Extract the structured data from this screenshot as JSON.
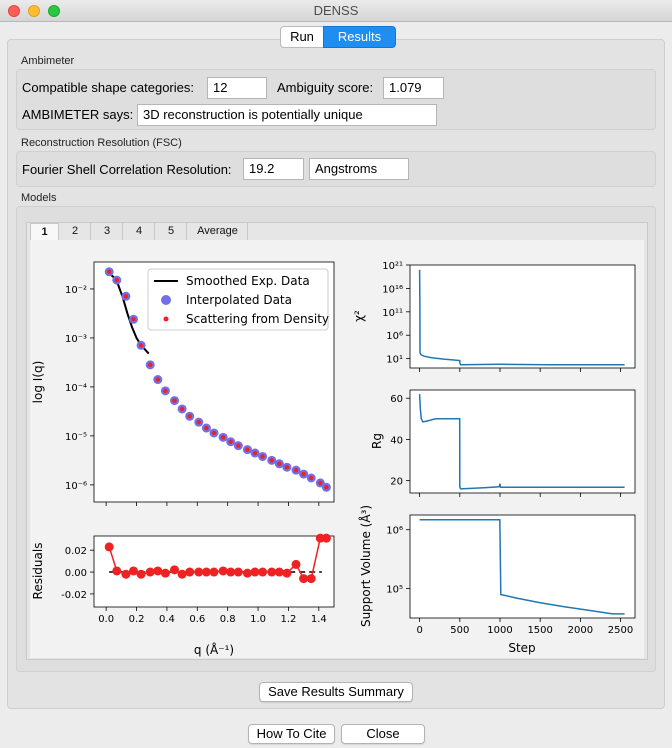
{
  "window": {
    "title": "DENSS"
  },
  "segmented": {
    "run": "Run",
    "results": "Results"
  },
  "ambimeter": {
    "section_label": "Ambimeter",
    "categories_label": "Compatible shape categories:",
    "categories_value": "12",
    "ambiguity_label": "Ambiguity score:",
    "ambiguity_value": "1.079",
    "says_label": "AMBIMETER says:",
    "says_value": "3D reconstruction is potentially unique"
  },
  "fsc": {
    "section_label": "Reconstruction Resolution (FSC)",
    "label": "Fourier Shell Correlation Resolution:",
    "value": "19.2",
    "unit": "Angstroms"
  },
  "models": {
    "section_label": "Models",
    "tabs": [
      "1",
      "2",
      "3",
      "4",
      "5",
      "Average"
    ],
    "selected_tab": "1"
  },
  "buttons": {
    "save": "Save Results Summary",
    "cite": "How To Cite",
    "close": "Close"
  },
  "colors": {
    "accent": "#1f8ef1",
    "line": "#1f77b4",
    "residual": "#ee2222",
    "interp": "#7070e8",
    "density": "#ee2222"
  },
  "chart_data": [
    {
      "type": "scatter",
      "ylabel": "log I(q)",
      "yscale": "log",
      "xlim": [
        -0.08,
        1.5
      ],
      "ylim_exp": [
        -6.35,
        -1.45
      ],
      "ytick_exponents": [
        -6,
        -5,
        -4,
        -3,
        -2
      ],
      "legend": [
        "Smoothed Exp. Data",
        "Interpolated Data",
        "Scattering from Density"
      ],
      "legend_placement": "top-right",
      "smoothed": {
        "x": [
          0.02,
          0.05,
          0.08,
          0.11,
          0.14,
          0.17,
          0.2,
          0.23,
          0.26,
          0.28
        ],
        "logy": [
          -1.68,
          -1.76,
          -1.92,
          -2.18,
          -2.5,
          -2.78,
          -3.0,
          -3.15,
          -3.25,
          -3.32
        ]
      },
      "points": {
        "x": [
          0.02,
          0.07,
          0.13,
          0.18,
          0.23,
          0.29,
          0.34,
          0.39,
          0.45,
          0.5,
          0.55,
          0.61,
          0.66,
          0.71,
          0.77,
          0.82,
          0.87,
          0.93,
          0.98,
          1.03,
          1.09,
          1.14,
          1.19,
          1.25,
          1.3,
          1.35,
          1.41,
          1.45
        ],
        "logy": [
          -1.65,
          -1.82,
          -2.15,
          -2.62,
          -3.15,
          -3.55,
          -3.85,
          -4.08,
          -4.28,
          -4.45,
          -4.6,
          -4.72,
          -4.84,
          -4.94,
          -5.03,
          -5.12,
          -5.2,
          -5.28,
          -5.35,
          -5.42,
          -5.5,
          -5.57,
          -5.64,
          -5.7,
          -5.78,
          -5.86,
          -5.96,
          -6.05
        ]
      }
    },
    {
      "type": "line",
      "xlabel": "q (Å⁻¹)",
      "ylabel": "Residuals",
      "xlim": [
        -0.08,
        1.5
      ],
      "ylim": [
        -0.032,
        0.033
      ],
      "xticks": [
        0.0,
        0.2,
        0.4,
        0.6,
        0.8,
        1.0,
        1.2,
        1.4
      ],
      "yticks": [
        -0.02,
        0.0,
        0.02
      ],
      "x": [
        0.02,
        0.07,
        0.13,
        0.18,
        0.23,
        0.29,
        0.34,
        0.39,
        0.45,
        0.5,
        0.55,
        0.61,
        0.66,
        0.71,
        0.77,
        0.82,
        0.87,
        0.93,
        0.98,
        1.03,
        1.09,
        1.14,
        1.19,
        1.25,
        1.3,
        1.35,
        1.41,
        1.45
      ],
      "y": [
        0.023,
        0.001,
        -0.002,
        0.001,
        -0.002,
        0.0,
        0.001,
        -0.001,
        0.002,
        -0.002,
        0.0,
        0.0,
        0.0,
        0.0,
        0.001,
        0.0,
        0.0,
        -0.001,
        0.0,
        0.0,
        0.0,
        0.0,
        -0.001,
        0.007,
        -0.006,
        -0.006,
        0.031,
        0.031
      ]
    },
    {
      "type": "line",
      "ylabel": "χ²",
      "yscale": "log",
      "xlim": [
        -120,
        2680
      ],
      "ylim_exp": [
        -1,
        21
      ],
      "ytick_exponents": [
        1,
        6,
        11,
        16,
        21
      ],
      "step": [
        0,
        3,
        5,
        20,
        60,
        150,
        300,
        500,
        500,
        510,
        1000,
        1600,
        2200,
        2550
      ],
      "log_chi2": [
        20,
        12,
        2.2,
        1.8,
        1.5,
        1.2,
        0.9,
        0.6,
        0.1,
        -0.3,
        -0.2,
        -0.3,
        -0.3,
        -0.3
      ]
    },
    {
      "type": "line",
      "ylabel": "Rg",
      "xlim": [
        -120,
        2680
      ],
      "ylim": [
        14,
        64
      ],
      "yticks": [
        20,
        40,
        60
      ],
      "step": [
        0,
        8,
        20,
        40,
        100,
        200,
        300,
        440,
        498,
        500,
        510,
        800,
        990,
        1000,
        1005,
        1010,
        1500,
        2000,
        2550
      ],
      "rg": [
        62,
        55,
        50,
        48.5,
        49,
        50,
        50,
        50,
        50,
        17,
        16,
        16.5,
        17,
        18.5,
        17,
        16.8,
        16.8,
        16.8,
        16.8
      ]
    },
    {
      "type": "line",
      "xlabel": "Step",
      "ylabel": "Support Volume (Å³)",
      "yscale": "log",
      "xlim": [
        -120,
        2680
      ],
      "ylim_exp": [
        4.5,
        6.25
      ],
      "ytick_exponents": [
        5,
        6
      ],
      "xticks": [
        0,
        500,
        1000,
        1500,
        2000,
        2500
      ],
      "step": [
        0,
        998,
        1000,
        1010,
        1200,
        1500,
        1800,
        2100,
        2400,
        2550
      ],
      "log_volume": [
        6.17,
        6.17,
        5.95,
        4.9,
        4.84,
        4.76,
        4.69,
        4.63,
        4.57,
        4.57
      ]
    }
  ]
}
